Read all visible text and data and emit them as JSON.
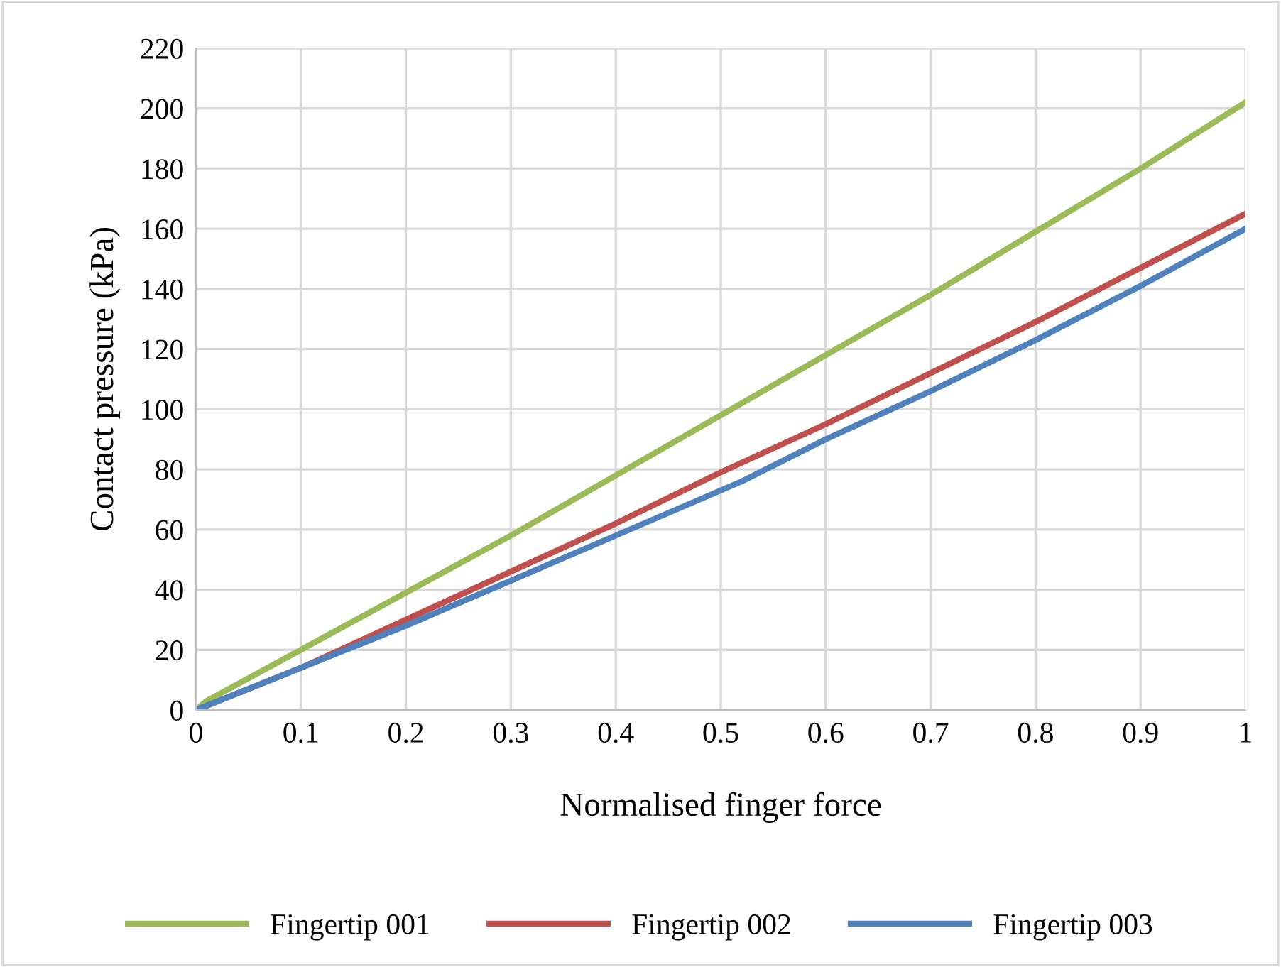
{
  "chart_data": {
    "type": "line",
    "xlabel": "Normalised finger force",
    "ylabel": "Contact pressure (kPa)",
    "xlim": [
      0,
      1
    ],
    "ylim": [
      0,
      220
    ],
    "xticks": [
      0,
      0.1,
      0.2,
      0.3,
      0.4,
      0.5,
      0.6,
      0.7,
      0.8,
      0.9,
      1
    ],
    "yticks": [
      0,
      20,
      40,
      60,
      80,
      100,
      120,
      140,
      160,
      180,
      200,
      220
    ],
    "grid": true,
    "legend": "bottom",
    "marker": "none",
    "line_style": "solid",
    "series": [
      {
        "name": "Fingertip 001",
        "color": "#9bbb59",
        "x": [
          0,
          0.01,
          0.1,
          0.2,
          0.3,
          0.4,
          0.5,
          0.6,
          0.7,
          0.8,
          0.9,
          1
        ],
        "values": [
          0,
          3,
          20,
          39,
          58,
          78,
          98,
          118,
          138,
          159,
          180,
          202
        ]
      },
      {
        "name": "Fingertip 002",
        "color": "#c0504d",
        "x": [
          0,
          0.1,
          0.2,
          0.3,
          0.4,
          0.5,
          0.6,
          0.7,
          0.8,
          0.9,
          1
        ],
        "values": [
          0,
          14,
          30,
          46,
          62,
          79,
          95,
          112,
          129,
          147,
          165
        ]
      },
      {
        "name": "Fingertip 003",
        "color": "#4f81bd",
        "x": [
          0,
          0.1,
          0.2,
          0.22,
          0.3,
          0.4,
          0.5,
          0.52,
          0.6,
          0.7,
          0.8,
          0.9,
          1
        ],
        "values": [
          0,
          14,
          28,
          31,
          43,
          58,
          73,
          76,
          90,
          106,
          123,
          141,
          160
        ]
      }
    ]
  }
}
